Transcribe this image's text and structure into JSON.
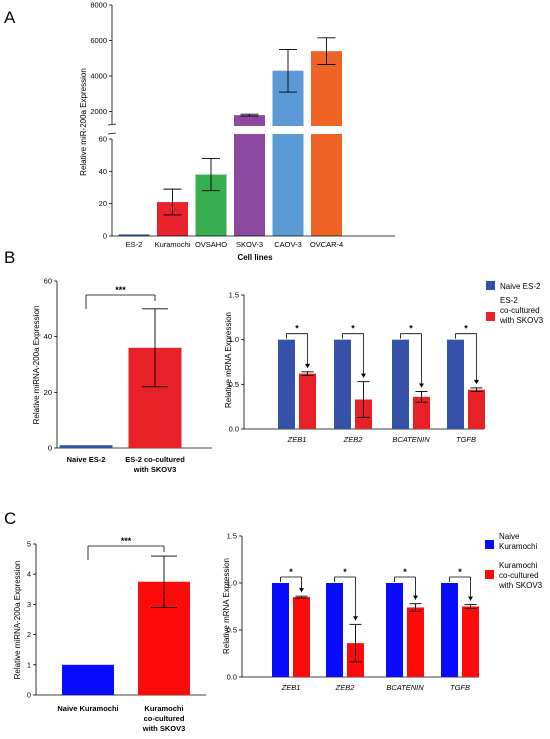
{
  "panel_letters": {
    "a": "A",
    "b": "B",
    "c": "C"
  },
  "colors": {
    "es2": "#3d5fb5",
    "kuramochi": "#e8232e",
    "ovsaho": "#38ad52",
    "skov3": "#8b4aa0",
    "caov3": "#5b9ad6",
    "ovcar4": "#ef6425",
    "naive_b": "#3551a8",
    "cocult_b": "#e82027",
    "naive_c": "#0a0aff",
    "cocult_c": "#ff0a0a"
  },
  "chart_data": [
    {
      "id": "A",
      "type": "bar",
      "xlabel": "Cell lines",
      "ylabel": "Relative miR-200a Expression",
      "categories": [
        "ES-2",
        "Kuramochi",
        "OVSAHO",
        "SKOV-3",
        "CAOV-3",
        "OVCAR-4"
      ],
      "values": [
        1,
        21,
        38,
        1800,
        4300,
        5400
      ],
      "error": [
        0.5,
        8,
        10,
        50,
        1200,
        750
      ],
      "axis_break": true,
      "ylim_lower": [
        0,
        60
      ],
      "ylim_upper": [
        1300,
        8000
      ],
      "yticks_lower": [
        "0",
        "20",
        "40",
        "60"
      ],
      "yticks_upper": [
        "2000",
        "4000",
        "6000",
        "8000"
      ]
    },
    {
      "id": "B-left",
      "type": "bar",
      "ylabel": "Relative miRNA-200a Expression",
      "categories": [
        "Naive ES-2",
        "ES-2 co-cultured with SKOV3"
      ],
      "category_lines": [
        [
          "Naive ES-2"
        ],
        [
          "ES-2 co-cultured",
          "with SKOV3"
        ]
      ],
      "values": [
        1,
        36
      ],
      "error": [
        0,
        14
      ],
      "ylim": [
        0,
        60
      ],
      "yticks": [
        "0",
        "20",
        "40",
        "60"
      ],
      "significance": "***"
    },
    {
      "id": "B-right",
      "type": "bar",
      "ylabel": "Relative mRNA Expression",
      "categories": [
        "ZEB1",
        "ZEB2",
        "BCATENIN",
        "TGFB"
      ],
      "series": [
        {
          "name": "Naive ES-2",
          "values": [
            1.0,
            1.0,
            1.0,
            1.0
          ],
          "error": [
            0,
            0,
            0,
            0
          ]
        },
        {
          "name": "ES-2 co-cultured with SKOV3",
          "values": [
            0.62,
            0.33,
            0.36,
            0.44
          ],
          "error": [
            0.02,
            0.2,
            0.06,
            0.02
          ]
        }
      ],
      "legend": [
        "Naive ES-2",
        "ES-2",
        "co-cultured",
        "with SKOV3"
      ],
      "legend_position": "top-right",
      "ylim": [
        0,
        1.5
      ],
      "yticks": [
        "0.0",
        "0.5",
        "1.0",
        "1.5"
      ],
      "significance": [
        "*",
        "*",
        "*",
        "*"
      ]
    },
    {
      "id": "C-left",
      "type": "bar",
      "ylabel": "Relative miRNA-200a Expression",
      "categories": [
        "Naive Kuramochi",
        "Kuramochi co-cultured with SKOV3"
      ],
      "category_lines": [
        [
          "Naive Kuramochi"
        ],
        [
          "Kuramochi",
          "co-cultured",
          "with SKOV3"
        ]
      ],
      "values": [
        1,
        3.75
      ],
      "error": [
        0,
        0.85
      ],
      "ylim": [
        0,
        5
      ],
      "yticks": [
        "0",
        "1",
        "2",
        "3",
        "4",
        "5"
      ],
      "significance": "***"
    },
    {
      "id": "C-right",
      "type": "bar",
      "ylabel": "Relative mRNA Expression",
      "categories": [
        "ZEB1",
        "ZEB2",
        "BCATENIN",
        "TGFB"
      ],
      "series": [
        {
          "name": "Naive Kuramochi",
          "values": [
            1.0,
            1.0,
            1.0,
            1.0
          ],
          "error": [
            0,
            0,
            0,
            0
          ]
        },
        {
          "name": "Kuramochi co-cultured with SKOV3",
          "values": [
            0.85,
            0.36,
            0.74,
            0.75
          ],
          "error": [
            0.01,
            0.2,
            0.04,
            0.02
          ]
        }
      ],
      "legend": [
        "Naive",
        "Kuramochi",
        "Kuramochi",
        "co-cultured",
        "with SKOV3"
      ],
      "legend_position": "top-right",
      "ylim": [
        0,
        1.5
      ],
      "yticks": [
        "0.0",
        "0.5",
        "1.0",
        "1.5"
      ],
      "significance": [
        "*",
        "*",
        "*",
        "*"
      ]
    }
  ]
}
